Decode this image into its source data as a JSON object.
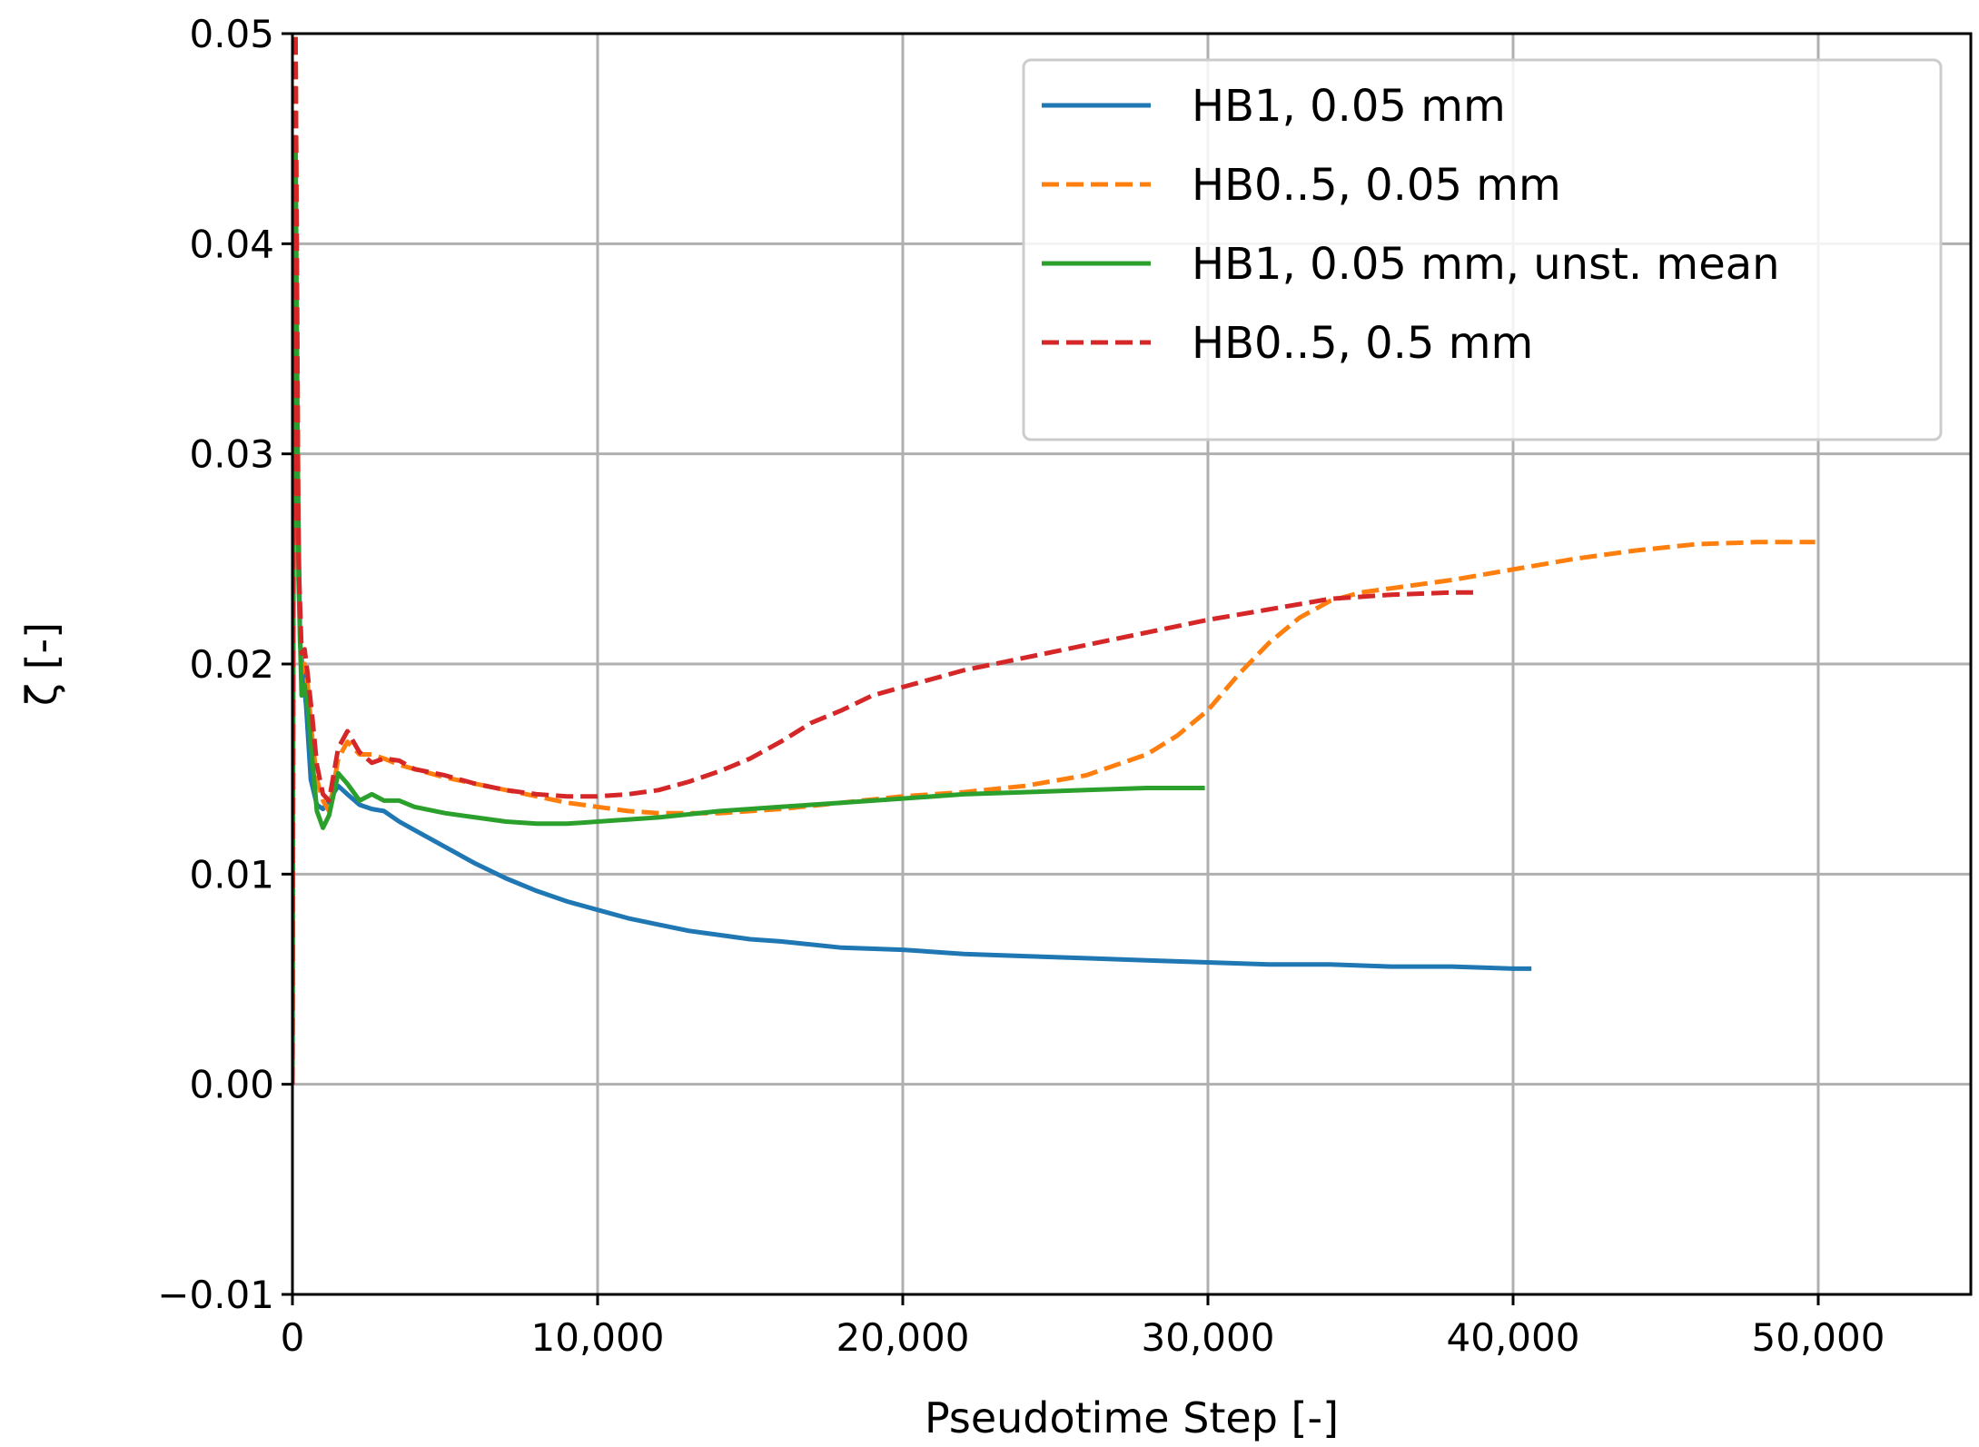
{
  "chart_data": {
    "type": "line",
    "xlabel": "Pseudotime Step [-]",
    "ylabel": "ζ [-]",
    "xlim": [
      0,
      55000
    ],
    "ylim": [
      -0.01,
      0.05
    ],
    "grid": true,
    "legend_position": "top-right",
    "x_ticks": [
      0,
      10000,
      20000,
      30000,
      40000,
      50000
    ],
    "x_tick_labels": [
      "0",
      "10,000",
      "20,000",
      "30,000",
      "40,000",
      "50,000"
    ],
    "y_ticks": [
      -0.01,
      0.0,
      0.01,
      0.02,
      0.03,
      0.04,
      0.05
    ],
    "y_tick_labels": [
      "−0.01",
      "0.00",
      "0.01",
      "0.02",
      "0.03",
      "0.04",
      "0.05"
    ],
    "series": [
      {
        "name": "HB1, 0.05 mm",
        "color": "#1f77b4",
        "dash": "solid",
        "x": [
          0,
          30,
          80,
          150,
          250,
          350,
          450,
          600,
          800,
          1000,
          1200,
          1500,
          1800,
          2200,
          2600,
          3000,
          3500,
          4000,
          5000,
          6000,
          7000,
          8000,
          9000,
          10000,
          11000,
          12000,
          13000,
          14000,
          15000,
          16000,
          18000,
          20000,
          22000,
          24000,
          26000,
          28000,
          30000,
          32000,
          34000,
          36000,
          38000,
          40000,
          40600
        ],
        "y": [
          0.0,
          0.028,
          0.045,
          0.032,
          0.021,
          0.0195,
          0.018,
          0.0145,
          0.0133,
          0.0131,
          0.0135,
          0.0142,
          0.0138,
          0.0133,
          0.0131,
          0.013,
          0.0125,
          0.0121,
          0.0113,
          0.0105,
          0.0098,
          0.0092,
          0.0087,
          0.0083,
          0.0079,
          0.0076,
          0.0073,
          0.0071,
          0.0069,
          0.0068,
          0.0065,
          0.0064,
          0.0062,
          0.0061,
          0.006,
          0.0059,
          0.0058,
          0.0057,
          0.0057,
          0.0056,
          0.0056,
          0.0055,
          0.0055
        ]
      },
      {
        "name": "HB0..5, 0.05 mm",
        "color": "#ff7f0e",
        "dash": "dashed",
        "x": [
          0,
          40,
          100,
          200,
          300,
          400,
          500,
          650,
          800,
          1000,
          1200,
          1500,
          1800,
          2200,
          2600,
          3000,
          3500,
          4000,
          5000,
          6000,
          7000,
          8000,
          9000,
          10000,
          11000,
          12000,
          14000,
          16000,
          18000,
          20000,
          22000,
          24000,
          26000,
          28000,
          29000,
          30000,
          31000,
          32000,
          33000,
          34000,
          35000,
          36000,
          38000,
          40000,
          42000,
          44000,
          46000,
          48000,
          49900
        ],
        "y": [
          0.0,
          0.03,
          0.05,
          0.025,
          0.0195,
          0.02,
          0.019,
          0.0165,
          0.0145,
          0.0135,
          0.013,
          0.0155,
          0.0163,
          0.0157,
          0.0157,
          0.0155,
          0.0152,
          0.015,
          0.0146,
          0.0143,
          0.014,
          0.0137,
          0.0134,
          0.0132,
          0.013,
          0.0129,
          0.0129,
          0.0131,
          0.0134,
          0.0137,
          0.0139,
          0.0142,
          0.0147,
          0.0157,
          0.0166,
          0.0178,
          0.0195,
          0.021,
          0.0222,
          0.023,
          0.0234,
          0.0236,
          0.024,
          0.0245,
          0.025,
          0.0254,
          0.0257,
          0.0258,
          0.0258
        ]
      },
      {
        "name": "HB1, 0.05 mm, unst. mean",
        "color": "#2ca02c",
        "dash": "solid",
        "x": [
          0,
          40,
          100,
          200,
          300,
          400,
          500,
          650,
          800,
          1000,
          1200,
          1500,
          1800,
          2200,
          2600,
          3000,
          3500,
          4000,
          5000,
          6000,
          7000,
          8000,
          9000,
          10000,
          12000,
          14000,
          16000,
          18000,
          20000,
          22000,
          24000,
          26000,
          28000,
          29900
        ],
        "y": [
          0.0,
          0.028,
          0.045,
          0.024,
          0.0185,
          0.019,
          0.018,
          0.0155,
          0.013,
          0.0122,
          0.0128,
          0.0148,
          0.0143,
          0.0135,
          0.0138,
          0.0135,
          0.0135,
          0.0132,
          0.0129,
          0.0127,
          0.0125,
          0.0124,
          0.0124,
          0.0125,
          0.0127,
          0.013,
          0.0132,
          0.0134,
          0.0136,
          0.0138,
          0.0139,
          0.014,
          0.0141,
          0.0141
        ]
      },
      {
        "name": "HB0..5, 0.5 mm",
        "color": "#d62728",
        "dash": "dashed",
        "x": [
          0,
          40,
          100,
          200,
          300,
          400,
          500,
          650,
          800,
          1000,
          1200,
          1500,
          1800,
          2200,
          2600,
          3000,
          3500,
          4000,
          5000,
          6000,
          7000,
          8000,
          9000,
          10000,
          11000,
          12000,
          13000,
          14000,
          15000,
          16000,
          17000,
          18000,
          19000,
          20000,
          21000,
          22000,
          24000,
          26000,
          28000,
          30000,
          32000,
          34000,
          36000,
          38000,
          38700
        ],
        "y": [
          0.0,
          0.03,
          0.05,
          0.025,
          0.0205,
          0.0207,
          0.0195,
          0.0175,
          0.0152,
          0.0138,
          0.0135,
          0.016,
          0.0168,
          0.0158,
          0.0153,
          0.0155,
          0.0154,
          0.015,
          0.0147,
          0.0143,
          0.014,
          0.0138,
          0.0137,
          0.0137,
          0.0138,
          0.014,
          0.0144,
          0.0149,
          0.0155,
          0.0163,
          0.0172,
          0.0178,
          0.0185,
          0.0189,
          0.0193,
          0.0197,
          0.0203,
          0.0209,
          0.0215,
          0.0221,
          0.0226,
          0.0231,
          0.0233,
          0.0234,
          0.0234
        ]
      }
    ]
  }
}
